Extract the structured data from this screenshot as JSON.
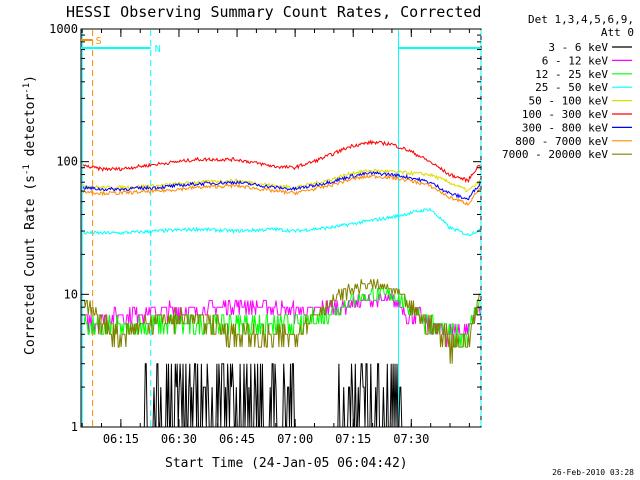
{
  "chart_data": {
    "type": "line",
    "title": "HESSI Observing Summary Count Rates, Corrected",
    "xlabel": "Start Time (24-Jan-05 06:04:42)",
    "ylabel": "Corrected Count Rate (s",
    "ylabel_sup": "-1",
    "ylabel_tail": " detector",
    "ylabel_sup2": "-1",
    "ylabel_end": ")",
    "yscale": "log",
    "ylim": [
      1,
      1000
    ],
    "xlim_minutes": [
      0,
      103.3
    ],
    "x_ticks": [
      {
        "label": "06:15",
        "m": 10.3
      },
      {
        "label": "06:30",
        "m": 25.3
      },
      {
        "label": "06:45",
        "m": 40.3
      },
      {
        "label": "07:00",
        "m": 55.3
      },
      {
        "label": "07:15",
        "m": 70.3
      },
      {
        "label": "07:30",
        "m": 85.3
      }
    ],
    "y_ticks": [
      {
        "label": "1",
        "v": 1
      },
      {
        "label": "10",
        "v": 10
      },
      {
        "label": "100",
        "v": 100
      },
      {
        "label": "1000",
        "v": 1000
      }
    ],
    "legend_header": [
      "Det 1,3,4,5,6,9,",
      "Att 0"
    ],
    "legend_position": "right",
    "series": [
      {
        "name": "3 - 6 keV",
        "color": "#000000"
      },
      {
        "name": "6 - 12 keV",
        "color": "#ff00ff"
      },
      {
        "name": "12 - 25 keV",
        "color": "#00ff00"
      },
      {
        "name": "25 - 50 keV",
        "color": "#00ffff"
      },
      {
        "name": "50 - 100 keV",
        "color": "#dddd00"
      },
      {
        "name": "100 - 300 keV",
        "color": "#ff0000"
      },
      {
        "name": "300 - 800 keV",
        "color": "#0000ff"
      },
      {
        "name": "800 - 7000 keV",
        "color": "#ff8c00"
      },
      {
        "name": "7000 - 20000 keV",
        "color": "#808000"
      }
    ],
    "series_shape": {
      "t": [
        0,
        5,
        10,
        20,
        30,
        40,
        50,
        55,
        60,
        65,
        70,
        75,
        80,
        85,
        90,
        95,
        100,
        103.3
      ],
      "3 - 6 keV": [
        1,
        1,
        1,
        1.5,
        1.6,
        1.7,
        1.4,
        1.1,
        1.3,
        1.5,
        1.7,
        1.9,
        2.4,
        1,
        1,
        1,
        1,
        1
      ],
      "6 - 12 keV": [
        6,
        6.5,
        7,
        7.5,
        7.5,
        8.5,
        8,
        7.5,
        7.5,
        8,
        8.5,
        9,
        9,
        7,
        6,
        5,
        5.5,
        8
      ],
      "12 - 25 keV": [
        6,
        5.5,
        5.5,
        6,
        6,
        6,
        5.8,
        5.8,
        6.5,
        7.5,
        9,
        10,
        10,
        8,
        6,
        5,
        5,
        9
      ],
      "25 - 50 keV": [
        29,
        29,
        29,
        30,
        31,
        30,
        31,
        30,
        31,
        32,
        34,
        36,
        38,
        41,
        44,
        32,
        28,
        31
      ],
      "50 - 100 keV": [
        66,
        64,
        64,
        66,
        70,
        72,
        66,
        64,
        68,
        74,
        82,
        86,
        84,
        82,
        80,
        70,
        60,
        72
      ],
      "100 - 300 keV": [
        94,
        88,
        88,
        96,
        104,
        104,
        92,
        90,
        100,
        114,
        132,
        140,
        136,
        120,
        100,
        80,
        72,
        98
      ],
      "300 - 800 keV": [
        64,
        62,
        62,
        64,
        68,
        70,
        64,
        62,
        66,
        71,
        78,
        82,
        80,
        76,
        70,
        58,
        52,
        70
      ],
      "800 - 7000 keV": [
        60,
        58,
        58,
        60,
        64,
        66,
        60,
        58,
        62,
        67,
        74,
        78,
        76,
        72,
        66,
        54,
        48,
        64
      ],
      "7000 - 20000 keV": [
        9,
        6,
        5,
        6.5,
        6.5,
        5,
        4.5,
        5,
        7,
        9,
        11,
        12,
        11,
        8,
        6,
        4.5,
        4.5,
        10
      ]
    },
    "flag_bars": [
      {
        "label": "S",
        "color": "#ff8c00",
        "start": 0,
        "end": 3
      },
      {
        "label": "N",
        "color": "#00ffff",
        "start": 0,
        "end": 18,
        "start2": 82,
        "end2": 103.3
      }
    ],
    "vlines": [
      {
        "m": 3,
        "color": "#ff8c00",
        "style": "dashed"
      },
      {
        "m": 18,
        "color": "#00ffff",
        "style": "dashed"
      },
      {
        "m": 82,
        "color": "#00ffff",
        "style": "solid"
      },
      {
        "m": 103.3,
        "color": "#00ffff",
        "style": "dashed"
      },
      {
        "m": 0.3,
        "color": "#00ffff",
        "style": "solid"
      }
    ],
    "grid": false
  },
  "footer": {
    "timestamp": "26-Feb-2010 03:28"
  }
}
